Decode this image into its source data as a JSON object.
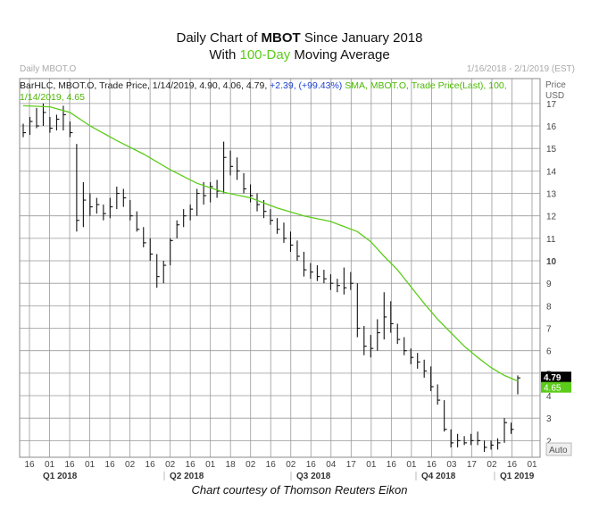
{
  "title": {
    "line1_pre": "Daily Chart of ",
    "line1_bold": "MBOT",
    "line1_post": " Since January 2018",
    "line2_pre": "With ",
    "line2_green": "100-Day",
    "line2_post": " Moving Average"
  },
  "header": {
    "left": "Daily MBOT.O",
    "right": "1/16/2018 - 2/1/2019 (EST)"
  },
  "legend": {
    "bar_text": "BarHLC, MBOT.O, Trade Price, 1/14/2019, 4.90, 4.06, 4.79, ",
    "bar_change": "+2.39, (+99.43%)",
    "sma_text": "SMA, MBOT.O, Trade Price(Last), 100,",
    "sma_value": "1/14/2019, 4.65"
  },
  "axis": {
    "price_label": "Price",
    "currency_label": "USD",
    "auto_label": "Auto"
  },
  "credit": "Chart courtesy of Thomson Reuters Eikon",
  "colors": {
    "bars": "#111111",
    "sma": "#5ccc1a",
    "grid": "#999999",
    "last_price_box": "#000000",
    "sma_box": "#5ccc1a",
    "change_text": "#1b3fd1"
  },
  "chart_data": {
    "type": "line",
    "ylim": [
      1,
      17.6
    ],
    "yticks": [
      2,
      3,
      4,
      5,
      6,
      7,
      8,
      9,
      10,
      11,
      12,
      13,
      14,
      15,
      16,
      17
    ],
    "xticks": [
      "16",
      "01",
      "16",
      "01",
      "16",
      "02",
      "16",
      "02",
      "16",
      "01",
      "18",
      "02",
      "16",
      "02",
      "16",
      "04",
      "17",
      "01",
      "16",
      "01",
      "16",
      "03",
      "17",
      "02",
      "16",
      "01"
    ],
    "periods": [
      "Q1 2018",
      "Q2 2018",
      "Q3 2018",
      "Q4 2018",
      "Q1 2019"
    ],
    "last_price_label": "4.79",
    "sma_label": "4.65",
    "series": [
      {
        "name": "BarHLC, MBOT.O",
        "kind": "ohlc",
        "points": [
          [
            0.0,
            16.1,
            15.5,
            15.7
          ],
          [
            0.5,
            16.4,
            15.6,
            16.2
          ],
          [
            1.0,
            16.8,
            15.9,
            16.0
          ],
          [
            1.5,
            17.0,
            16.0,
            16.6
          ],
          [
            2.0,
            16.4,
            15.7,
            15.9
          ],
          [
            2.5,
            16.5,
            15.8,
            16.3
          ],
          [
            3.0,
            16.9,
            15.8,
            16.5
          ],
          [
            3.5,
            16.2,
            15.5,
            15.7
          ],
          [
            4.0,
            15.2,
            11.3,
            11.8
          ],
          [
            4.5,
            13.5,
            11.5,
            12.7
          ],
          [
            5.0,
            13.0,
            12.0,
            12.4
          ],
          [
            5.5,
            12.8,
            12.1,
            12.5
          ],
          [
            6.0,
            12.5,
            11.8,
            12.1
          ],
          [
            6.5,
            12.8,
            11.9,
            12.4
          ],
          [
            7.0,
            13.3,
            12.3,
            13.0
          ],
          [
            7.5,
            13.2,
            12.4,
            12.8
          ],
          [
            8.0,
            12.7,
            11.8,
            12.0
          ],
          [
            8.5,
            12.2,
            11.3,
            11.4
          ],
          [
            9.0,
            11.5,
            10.6,
            10.8
          ],
          [
            9.5,
            11.0,
            10.0,
            10.3
          ],
          [
            10.0,
            10.3,
            8.8,
            9.3
          ],
          [
            10.5,
            10.0,
            9.0,
            9.8
          ],
          [
            11.0,
            11.0,
            9.8,
            10.9
          ],
          [
            11.5,
            11.8,
            11.0,
            11.6
          ],
          [
            12.0,
            12.3,
            11.5,
            12.0
          ],
          [
            12.5,
            12.5,
            11.8,
            12.3
          ],
          [
            13.0,
            13.2,
            12.0,
            13.0
          ],
          [
            13.5,
            13.5,
            12.5,
            12.9
          ],
          [
            14.0,
            13.5,
            12.6,
            13.3
          ],
          [
            14.5,
            13.6,
            12.8,
            13.1
          ],
          [
            15.0,
            15.3,
            13.0,
            14.6
          ],
          [
            15.5,
            14.9,
            13.8,
            14.2
          ],
          [
            16.0,
            14.6,
            13.6,
            14.0
          ],
          [
            16.5,
            13.9,
            13.0,
            13.2
          ],
          [
            17.0,
            13.4,
            12.6,
            12.9
          ],
          [
            17.5,
            13.0,
            12.2,
            12.5
          ],
          [
            18.0,
            12.7,
            11.9,
            12.2
          ],
          [
            18.5,
            12.3,
            11.6,
            11.8
          ],
          [
            19.0,
            11.9,
            11.2,
            11.4
          ],
          [
            19.5,
            11.7,
            10.8,
            11.0
          ],
          [
            20.0,
            11.3,
            10.4,
            10.7
          ],
          [
            20.5,
            10.9,
            10.0,
            10.2
          ],
          [
            21.0,
            10.4,
            9.3,
            9.6
          ],
          [
            21.5,
            9.9,
            9.2,
            9.5
          ],
          [
            22.0,
            9.8,
            9.1,
            9.3
          ],
          [
            22.5,
            9.6,
            9.0,
            9.2
          ],
          [
            23.0,
            9.4,
            8.7,
            9.0
          ],
          [
            23.5,
            9.2,
            8.6,
            8.9
          ],
          [
            24.0,
            9.7,
            8.5,
            8.8
          ],
          [
            24.5,
            9.5,
            8.7,
            9.0
          ],
          [
            25.0,
            9.0,
            6.6,
            7.0
          ],
          [
            25.5,
            7.1,
            5.8,
            6.2
          ],
          [
            26.0,
            6.7,
            5.7,
            6.1
          ],
          [
            26.5,
            7.4,
            6.0,
            6.8
          ],
          [
            27.0,
            8.6,
            6.5,
            7.5
          ],
          [
            27.5,
            8.2,
            6.8,
            7.2
          ],
          [
            28.0,
            7.2,
            6.3,
            6.5
          ],
          [
            28.5,
            6.6,
            5.8,
            6.0
          ],
          [
            29.0,
            6.1,
            5.4,
            5.7
          ],
          [
            29.5,
            5.9,
            5.2,
            5.5
          ],
          [
            30.0,
            5.6,
            4.8,
            5.1
          ],
          [
            30.5,
            5.3,
            4.2,
            4.4
          ],
          [
            31.0,
            4.5,
            3.6,
            3.8
          ],
          [
            31.5,
            3.8,
            2.4,
            2.5
          ],
          [
            32.0,
            2.5,
            1.7,
            1.9
          ],
          [
            32.5,
            2.3,
            1.7,
            2.0
          ],
          [
            33.0,
            2.2,
            1.8,
            1.9
          ],
          [
            33.5,
            2.3,
            1.8,
            2.0
          ],
          [
            34.0,
            2.4,
            1.8,
            2.0
          ],
          [
            34.5,
            2.0,
            1.5,
            1.7
          ],
          [
            35.0,
            2.0,
            1.6,
            1.8
          ],
          [
            35.5,
            2.1,
            1.6,
            1.9
          ],
          [
            36.0,
            3.0,
            1.9,
            2.8
          ],
          [
            36.5,
            2.8,
            2.3,
            2.5
          ],
          [
            37.0,
            4.9,
            4.06,
            4.79
          ]
        ]
      },
      {
        "name": "SMA 100",
        "kind": "line",
        "points": [
          [
            0.0,
            16.9
          ],
          [
            2.0,
            16.85
          ],
          [
            3.5,
            16.6
          ],
          [
            5.0,
            16.0
          ],
          [
            7.0,
            15.35
          ],
          [
            9.0,
            14.75
          ],
          [
            11.0,
            14.05
          ],
          [
            13.0,
            13.45
          ],
          [
            15.0,
            13.05
          ],
          [
            17.0,
            12.8
          ],
          [
            19.0,
            12.35
          ],
          [
            21.0,
            12.0
          ],
          [
            23.0,
            11.75
          ],
          [
            25.0,
            11.3
          ],
          [
            26.0,
            10.85
          ],
          [
            27.0,
            10.2
          ],
          [
            28.0,
            9.6
          ],
          [
            29.0,
            8.85
          ],
          [
            30.0,
            8.1
          ],
          [
            31.0,
            7.4
          ],
          [
            32.0,
            6.8
          ],
          [
            33.0,
            6.2
          ],
          [
            34.0,
            5.7
          ],
          [
            35.0,
            5.25
          ],
          [
            36.0,
            4.9
          ],
          [
            37.0,
            4.65
          ]
        ]
      }
    ]
  }
}
